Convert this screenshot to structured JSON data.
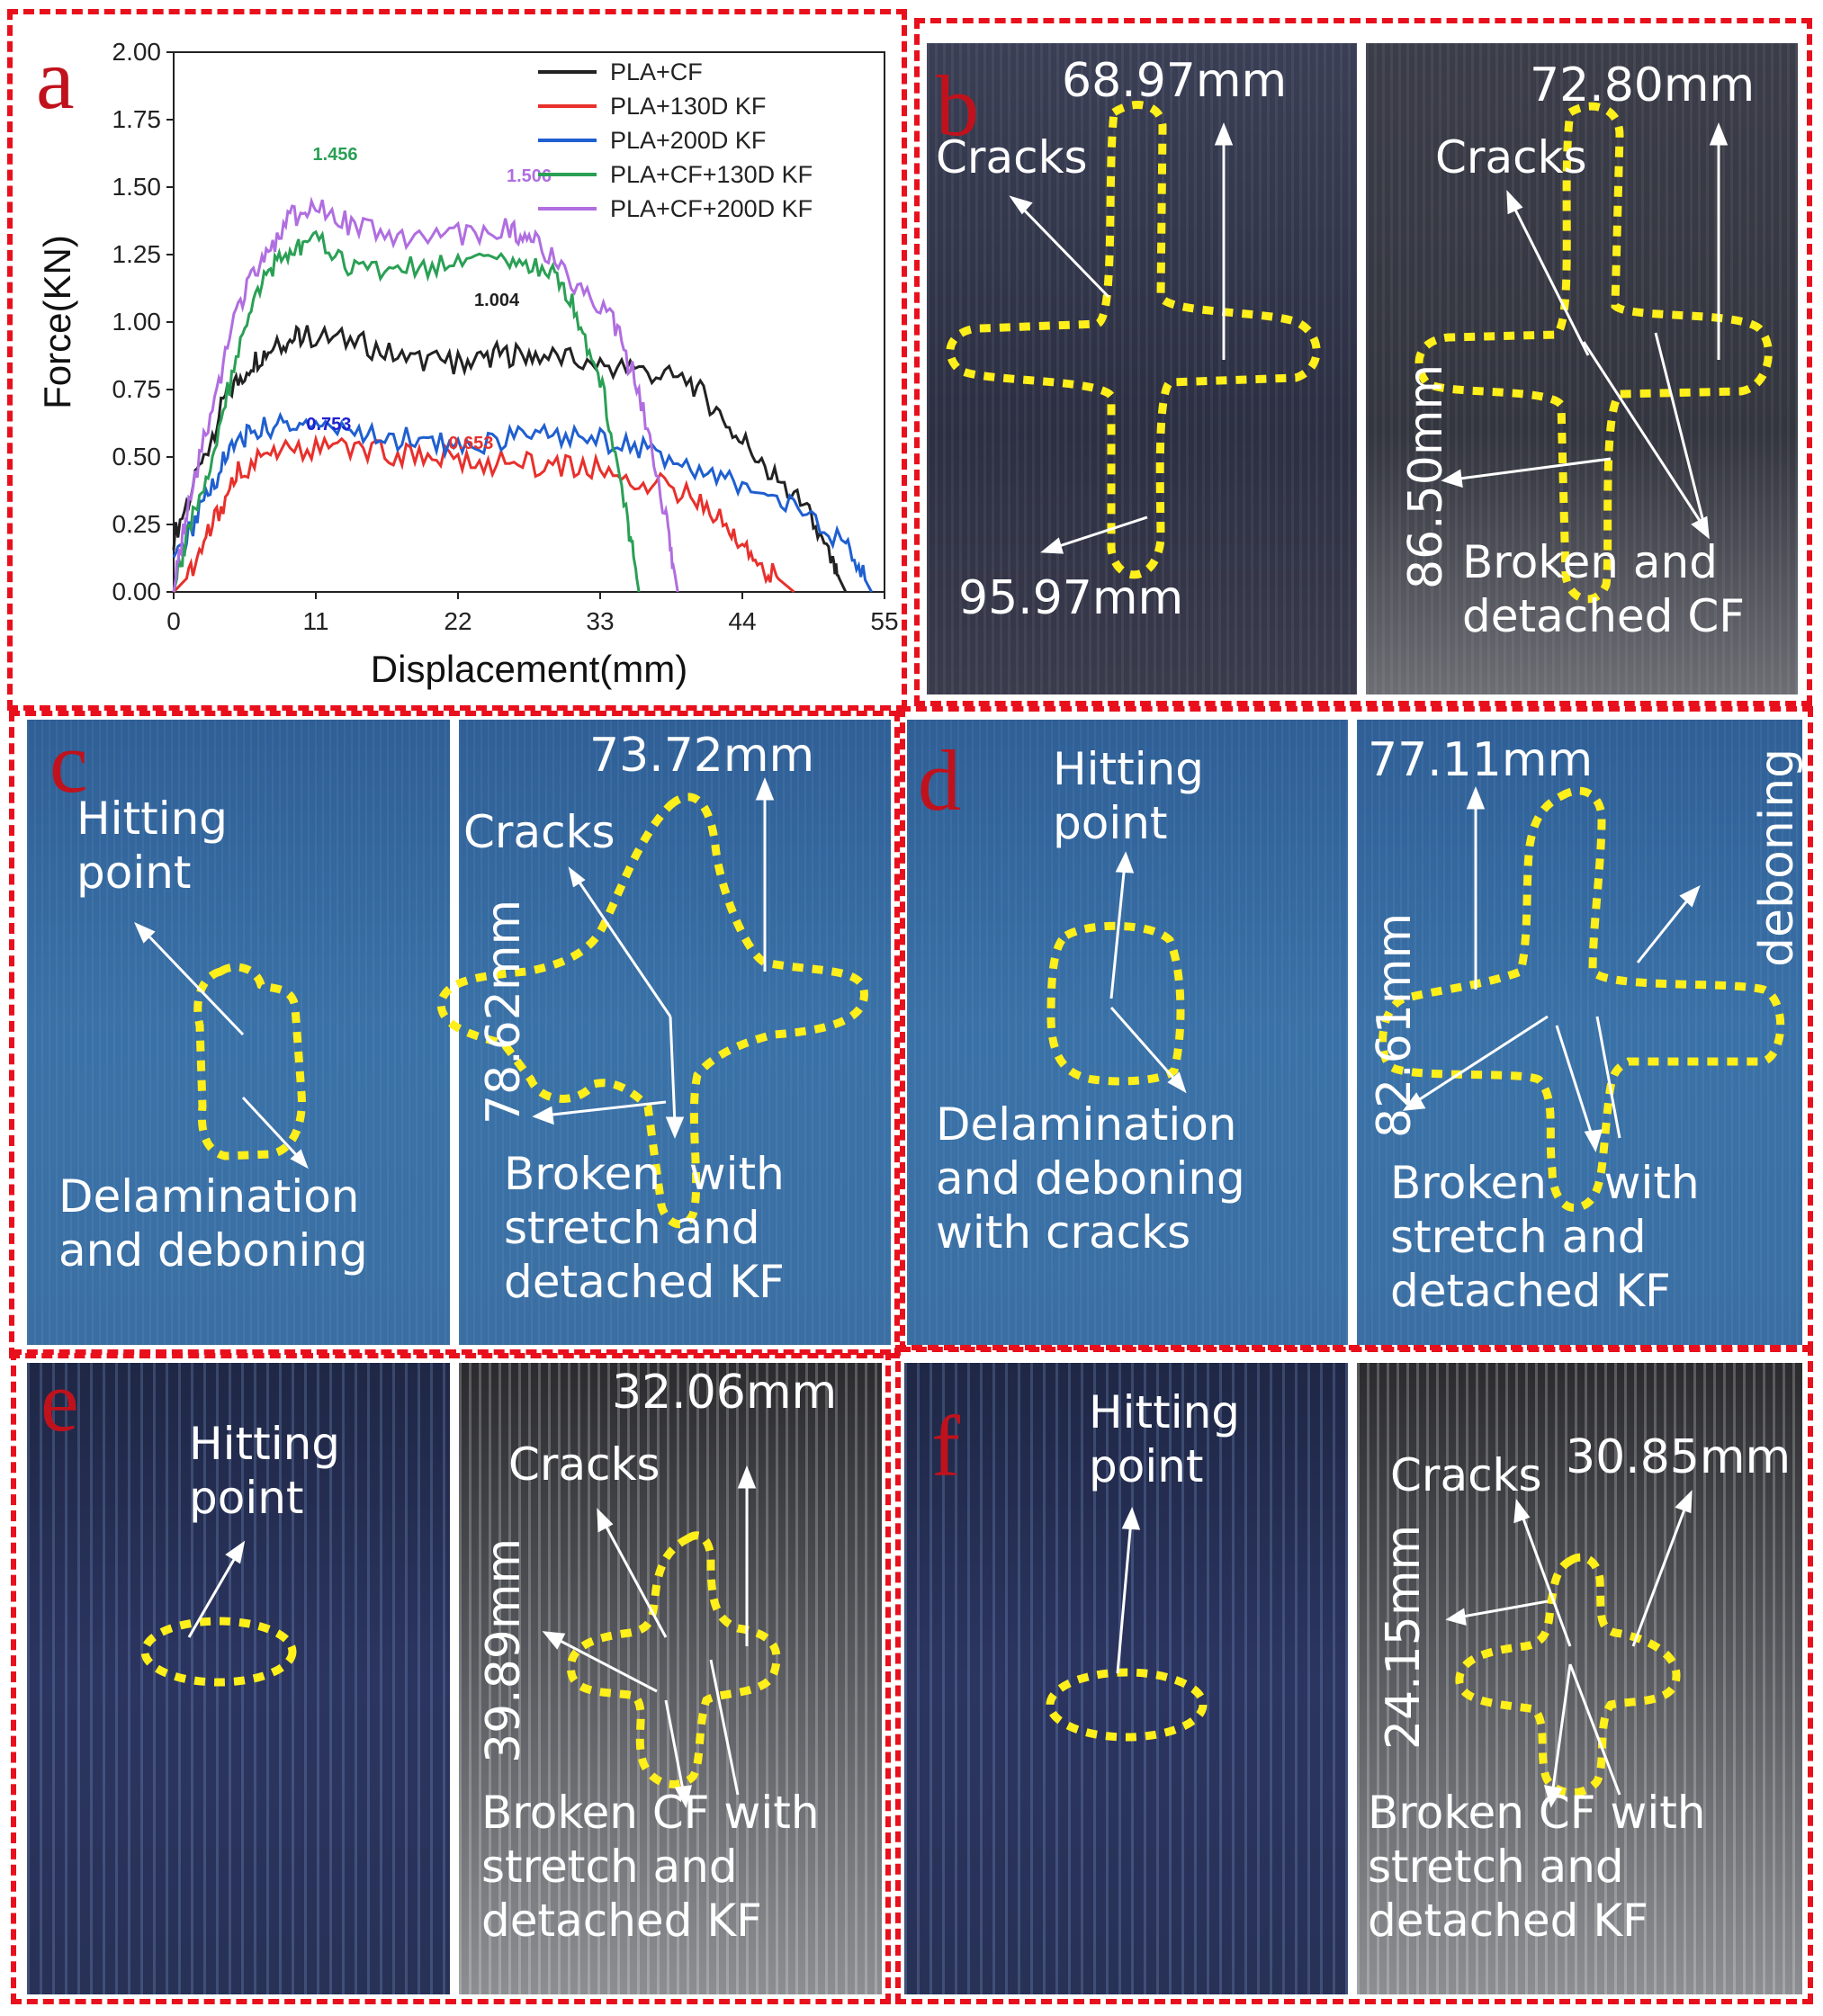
{
  "panels": {
    "a": {
      "letter": "a"
    },
    "b": {
      "letter": "b",
      "left_width": "68.97mm",
      "left_height": "95.97mm",
      "right_width": "72.80mm",
      "right_height": "86.50mm",
      "cracks_left": "Cracks",
      "cracks_right": "Cracks",
      "damage": "Broken and\ndetached CF"
    },
    "c": {
      "letter": "c",
      "hitting": "Hitting\npoint",
      "delam": "Delamination\nand deboning",
      "width": "73.72mm",
      "height": "78.62mm",
      "cracks": "Cracks",
      "damage": "Broken  with\nstretch and\ndetached KF"
    },
    "d": {
      "letter": "d",
      "hitting": "Hitting\npoint",
      "delam": "Delamination\nand deboning\nwith cracks",
      "width": "77.11mm",
      "height": "82.61mm",
      "deboning": "deboning",
      "damage": "Broken    with\nstretch and\ndetached KF"
    },
    "e": {
      "letter": "e",
      "hitting": "Hitting\npoint",
      "width": "32.06mm",
      "height": "39.89mm",
      "cracks": "Cracks",
      "damage": "Broken CF with\nstretch and\ndetached KF"
    },
    "f": {
      "letter": "f",
      "hitting": "Hitting\npoint",
      "width": "30.85mm",
      "height": "24.15mm",
      "cracks": "Cracks",
      "damage": "Broken CF with\nstretch and\ndetached KF"
    }
  },
  "chart_data": {
    "type": "line",
    "xlabel": "Displacement(mm)",
    "ylabel": "Force(KN)",
    "xlim": [
      0,
      55
    ],
    "ylim": [
      0,
      2.0
    ],
    "xticks": [
      "0",
      "11",
      "22",
      "33",
      "44",
      "55"
    ],
    "yticks": [
      "0.00",
      "0.25",
      "0.50",
      "0.75",
      "1.00",
      "1.25",
      "1.50",
      "1.75",
      "2.00"
    ],
    "legend_position": "top-right",
    "series": [
      {
        "name": "PLA+CF",
        "color": "#222222",
        "x": [
          0,
          2,
          4,
          6,
          8,
          10,
          14,
          18,
          22,
          25,
          28,
          32,
          36,
          40,
          43,
          46,
          49,
          51,
          52
        ],
        "y": [
          0.2,
          0.45,
          0.72,
          0.85,
          0.92,
          0.95,
          0.93,
          0.86,
          0.85,
          0.88,
          0.88,
          0.85,
          0.82,
          0.78,
          0.62,
          0.45,
          0.3,
          0.1,
          0.0
        ]
      },
      {
        "name": "PLA+130D KF",
        "color": "#e8302c",
        "x": [
          0,
          1,
          3,
          5,
          8,
          12,
          16,
          20,
          24,
          28,
          32,
          36,
          40,
          43,
          45,
          47,
          48
        ],
        "y": [
          0.0,
          0.05,
          0.25,
          0.45,
          0.52,
          0.53,
          0.52,
          0.5,
          0.48,
          0.47,
          0.46,
          0.42,
          0.36,
          0.24,
          0.12,
          0.04,
          0.0
        ]
      },
      {
        "name": "PLA+200D KF",
        "color": "#1f5fd0",
        "x": [
          0,
          2,
          4,
          6,
          9,
          12,
          16,
          20,
          24,
          28,
          32,
          36,
          40,
          44,
          48,
          52,
          54
        ],
        "y": [
          0.1,
          0.3,
          0.5,
          0.6,
          0.62,
          0.62,
          0.58,
          0.55,
          0.55,
          0.58,
          0.57,
          0.54,
          0.45,
          0.4,
          0.32,
          0.18,
          0.0
        ]
      },
      {
        "name": "PLA+CF+130D KF",
        "color": "#2aa055",
        "x": [
          0,
          1,
          3,
          5,
          7,
          9,
          11,
          14,
          18,
          22,
          26,
          29,
          31,
          33,
          35,
          36
        ],
        "y": [
          0.0,
          0.2,
          0.5,
          0.9,
          1.15,
          1.28,
          1.3,
          1.2,
          1.2,
          1.22,
          1.22,
          1.2,
          1.05,
          0.8,
          0.3,
          0.0
        ]
      },
      {
        "name": "PLA+CF+200D KF",
        "color": "#b06ee0",
        "x": [
          0,
          1,
          3,
          5,
          7,
          9,
          11,
          14,
          18,
          22,
          26,
          28,
          31,
          34,
          36,
          38,
          39
        ],
        "y": [
          0.0,
          0.3,
          0.7,
          1.05,
          1.25,
          1.38,
          1.45,
          1.35,
          1.3,
          1.32,
          1.35,
          1.3,
          1.15,
          1.0,
          0.75,
          0.3,
          0.0
        ]
      }
    ],
    "annotations": [
      {
        "text": "1.456",
        "x": 12.5,
        "y": 1.6,
        "color": "#2aa055"
      },
      {
        "text": "1.506",
        "x": 27.5,
        "y": 1.52,
        "color": "#b06ee0"
      },
      {
        "text": "1.004",
        "x": 25,
        "y": 1.06,
        "color": "#222222"
      },
      {
        "text": "0.753",
        "x": 12,
        "y": 0.6,
        "color": "#1f1fd0"
      },
      {
        "text": "0.653",
        "x": 23,
        "y": 0.53,
        "color": "#e8302c"
      }
    ]
  }
}
